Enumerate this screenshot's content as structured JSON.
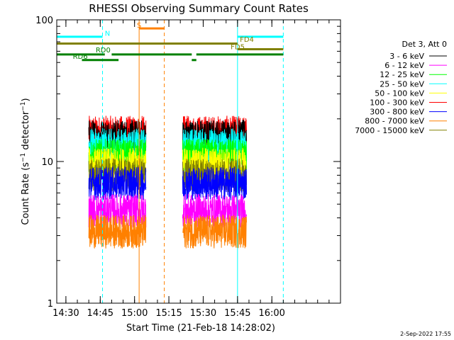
{
  "chart_data": {
    "type": "line",
    "title": "RHESSI Observing Summary Count Rates",
    "xlabel": "Start Time (21-Feb-18 14:28:02)",
    "ylabel_main": "Count Rate (s",
    "ylabel_sup1": "−1",
    "ylabel_mid": " detector",
    "ylabel_sup2": "−1",
    "ylabel_end": ")",
    "y_scale": "log",
    "ylim": [
      1,
      100
    ],
    "xlim": [
      "14:26",
      "16:30"
    ],
    "y_ticks": [
      {
        "value": 1,
        "label": "1"
      },
      {
        "value": 10,
        "label": "10"
      },
      {
        "value": 100,
        "label": "100"
      }
    ],
    "x_ticks": [
      {
        "value": "14:30",
        "label": "14:30"
      },
      {
        "value": "14:45",
        "label": "14:45"
      },
      {
        "value": "15:00",
        "label": "15:00"
      },
      {
        "value": "15:15",
        "label": "15:15"
      },
      {
        "value": "15:30",
        "label": "15:30"
      },
      {
        "value": "15:45",
        "label": "15:45"
      },
      {
        "value": "16:00",
        "label": "16:00"
      }
    ],
    "legend_title": "Det 3, Att 0",
    "legend_placement": "right",
    "series": [
      {
        "name": "3 - 6 keV",
        "color": "#000000",
        "level": 15
      },
      {
        "name": "6 - 12 keV",
        "color": "#ff00ff",
        "level": 4.5
      },
      {
        "name": "12 - 25 keV",
        "color": "#00ff00",
        "level": 11
      },
      {
        "name": "25 - 50 keV",
        "color": "#00ffff",
        "level": 13
      },
      {
        "name": "50 - 100 keV",
        "color": "#ffff00",
        "level": 9.5
      },
      {
        "name": "100 - 300 keV",
        "color": "#ff0000",
        "level": 16
      },
      {
        "name": "300 - 800 keV",
        "color": "#0000ff",
        "level": 7
      },
      {
        "name": "800 - 7000 keV",
        "color": "#ff8000",
        "level": 3.2
      },
      {
        "name": "7000 - 15000 keV",
        "color": "#808000",
        "level": 8
      }
    ],
    "data_segments": [
      {
        "start": "14:40",
        "end": "15:05"
      },
      {
        "start": "15:21",
        "end": "15:49"
      }
    ],
    "state_bars": [
      {
        "label": "N",
        "color": "#00ffff",
        "start": "14:26",
        "end": "14:46",
        "y": 76
      },
      {
        "label": "S",
        "color": "#ff8000",
        "start": "15:02",
        "end": "15:13",
        "y": 87
      },
      {
        "label": "FD4",
        "color": "#808000",
        "start": "14:26",
        "end": "15:45",
        "y": 68
      },
      {
        "label": "FD5",
        "color": "#808000",
        "start": "15:45",
        "end": "16:05",
        "y": 62
      },
      {
        "label": "N",
        "color": "#00ffff",
        "start": "15:45",
        "end": "16:05",
        "y": 76
      },
      {
        "label": "RD0",
        "color": "#008000",
        "start": "14:26",
        "end": "14:47",
        "y": 57
      },
      {
        "label": "RD0",
        "color": "#008000",
        "start": "14:50",
        "end": "15:25",
        "y": 57
      },
      {
        "label": "RD0",
        "color": "#008000",
        "start": "15:27",
        "end": "16:05",
        "y": 57
      },
      {
        "label": "RD6",
        "color": "#008000",
        "start": "14:37",
        "end": "14:53",
        "y": 52
      },
      {
        "label": "RD6",
        "color": "#008000",
        "start": "15:25",
        "end": "15:27",
        "y": 52
      }
    ],
    "bar_labels": [
      {
        "text": "N",
        "color": "#00ffff",
        "x": "14:47",
        "y": 77
      },
      {
        "text": "S",
        "color": "#ff8000",
        "x": "15:01",
        "y": 88
      },
      {
        "text": "FD4",
        "color": "#808000",
        "x": "15:46",
        "y": 70
      },
      {
        "text": "FD5",
        "color": "#808000",
        "x": "15:42",
        "y": 62
      },
      {
        "text": "RD0",
        "color": "#008000",
        "x": "14:43",
        "y": 59
      },
      {
        "text": "RD6",
        "color": "#008000",
        "x": "14:33",
        "y": 53
      }
    ],
    "vlines": [
      {
        "time": "14:26",
        "color": "#00ffff",
        "style": "solid"
      },
      {
        "time": "14:46",
        "color": "#00ffff",
        "style": "dashed"
      },
      {
        "time": "15:02",
        "color": "#ff8000",
        "style": "solid"
      },
      {
        "time": "15:13",
        "color": "#ff8000",
        "style": "dashed"
      },
      {
        "time": "15:45",
        "color": "#00ffff",
        "style": "solid"
      },
      {
        "time": "16:05",
        "color": "#00ffff",
        "style": "dashed"
      }
    ]
  },
  "footer_date": "2-Sep-2022 17:55"
}
